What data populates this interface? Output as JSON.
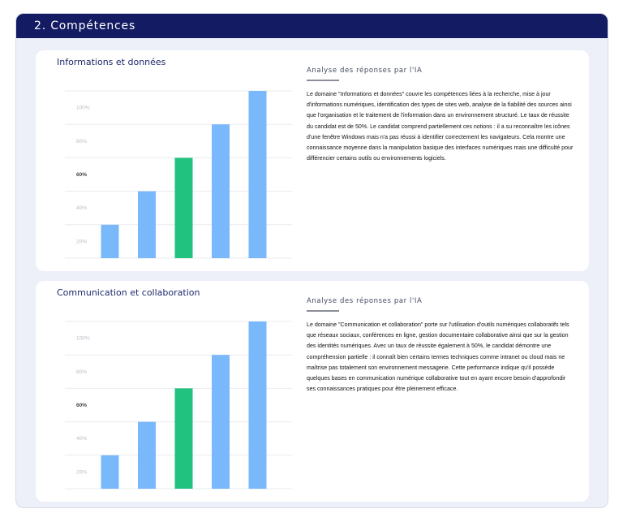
{
  "section": {
    "title": "2. Compétences"
  },
  "cards": [
    {
      "title": "Informations et données",
      "analysis_title": "Analyse des réponses par l'IA",
      "analysis_text": "Le domaine \"Informations et données\" couvre les compétences liées à la recherche, mise à jour d'informations numériques, identification des types de sites web, analyse de la fiabilité des sources ainsi que l'organisation et le traitement de l'information dans un environnement structuré. Le taux de réussite du candidat est de 50%. Le candidat comprend partiellement ces notions : il a su reconnaître les icônes d'une fenêtre Windows mais n'a pas réussi à identifier correctement les navigateurs. Cela montre une connaissance moyenne dans la manipulation basique des interfaces numériques mais une difficulté pour différencier certains outils ou environnements logiciels."
    },
    {
      "title": "Communication et collaboration",
      "analysis_title": "Analyse des réponses par l'IA",
      "analysis_text": "Le domaine \"Communication et collaboration\" porte sur l'utilisation d'outils numériques collaboratifs tels que réseaux sociaux, conférences en ligne, gestion documentaire collaborative ainsi que sur la gestion des identités numériques. Avec un taux de réussite également à 50%, le candidat démontre une compréhension partielle : il connaît bien certains termes techniques comme intranet ou cloud mais ne maîtrise pas totalement son environnement messagerie. Cette performance indique qu'il possède quelques bases en communication numérique collaborative tout en ayant encore besoin d'approfondir ses connaissances pratiques pour être pleinement efficace."
    }
  ],
  "chart_data": [
    {
      "type": "bar",
      "title": "",
      "xlabel": "",
      "ylabel": "",
      "y_ticks": [
        "20%",
        "40%",
        "60%",
        "80%",
        "100%"
      ],
      "highlight_tick": "60%",
      "values": [
        20,
        40,
        60,
        80,
        100
      ],
      "highlight_index": 2,
      "colors": {
        "bar": "#78b8fb",
        "highlight": "#21c17f",
        "grid": "#e9ebef"
      },
      "ylim": [
        0,
        100
      ],
      "grid": true
    },
    {
      "type": "bar",
      "title": "",
      "xlabel": "",
      "ylabel": "",
      "y_ticks": [
        "20%",
        "40%",
        "60%",
        "80%",
        "100%"
      ],
      "highlight_tick": "60%",
      "values": [
        20,
        40,
        60,
        80,
        100
      ],
      "highlight_index": 2,
      "colors": {
        "bar": "#78b8fb",
        "highlight": "#21c17f",
        "grid": "#e9ebef"
      },
      "ylim": [
        0,
        100
      ],
      "grid": true
    }
  ]
}
